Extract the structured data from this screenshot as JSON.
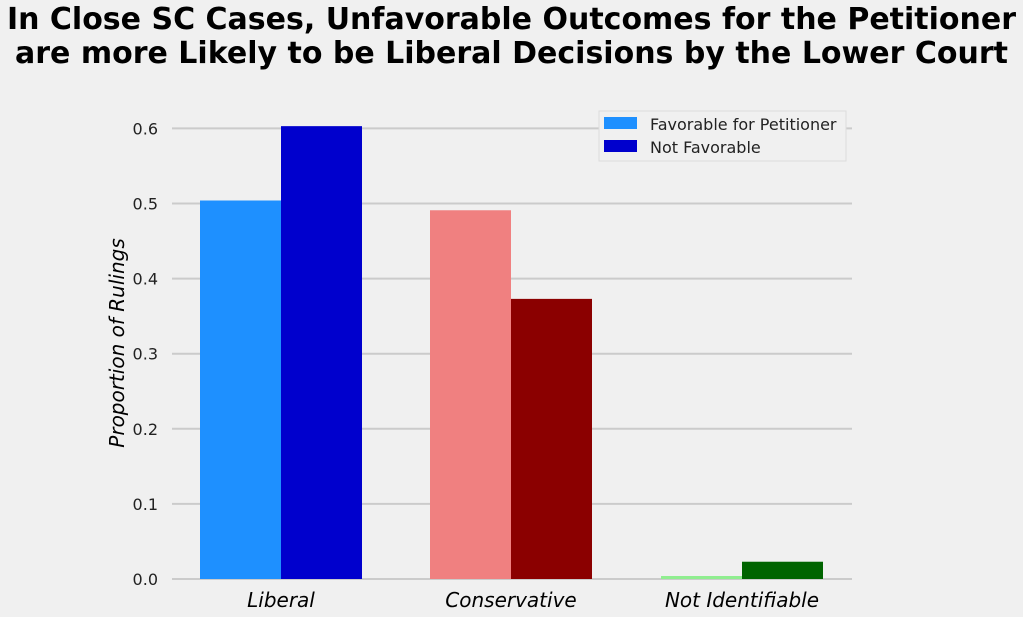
{
  "chart_data": {
    "type": "bar",
    "title_lines": [
      "In Close SC Cases, Unfavorable Outcomes for the Petitioner",
      "are more Likely to be Liberal Decisions by the Lower Court"
    ],
    "ylabel": "Proportion of Rulings",
    "xlabel": "",
    "categories": [
      "Liberal",
      "Conservative",
      "Not Identifiable"
    ],
    "ylim": [
      0,
      0.64
    ],
    "yticks": [
      "0.0",
      "0.1",
      "0.2",
      "0.3",
      "0.4",
      "0.5",
      "0.6"
    ],
    "grid": "horizontal",
    "legend_position": "top-right",
    "series": [
      {
        "name": "Favorable for Petitioner",
        "values": [
          0.504,
          0.491,
          0.004
        ],
        "colors": [
          "#1e90ff",
          "#f08080",
          "#90ee90"
        ]
      },
      {
        "name": "Not Favorable",
        "values": [
          0.603,
          0.373,
          0.023
        ],
        "colors": [
          "#0000cd",
          "#8b0000",
          "#006400"
        ]
      }
    ],
    "grid_color": "#cbcbcb"
  }
}
